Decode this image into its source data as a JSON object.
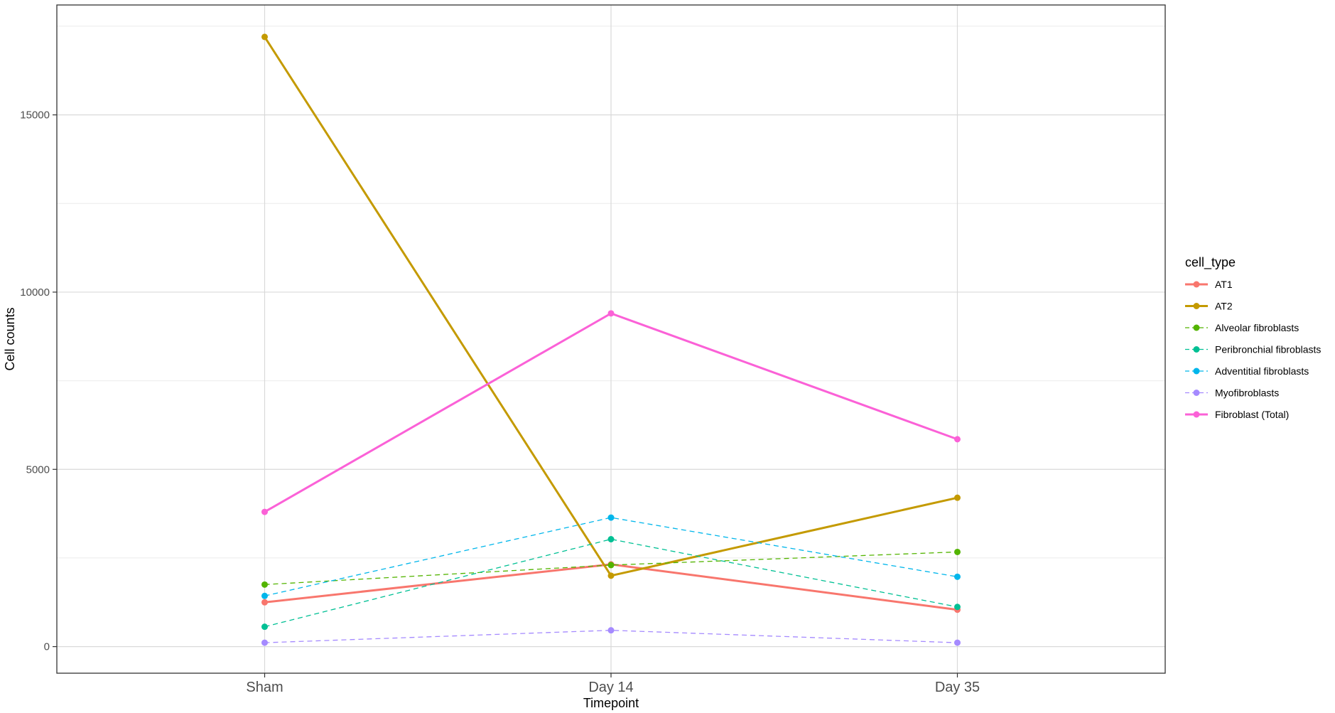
{
  "chart_data": {
    "type": "line",
    "title": "",
    "xlabel": "Timepoint",
    "ylabel": "Cell counts",
    "categories": [
      "Sham",
      "Day 14",
      "Day 35"
    ],
    "ylim": [
      -750,
      18100
    ],
    "yticks": [
      0,
      5000,
      10000,
      15000
    ],
    "grid": true,
    "legend": {
      "title": "cell_type",
      "placement": "right"
    },
    "series": [
      {
        "name": "AT1",
        "values": [
          1250,
          2320,
          1040
        ],
        "color": "#F8766D",
        "linestyle": "solid"
      },
      {
        "name": "AT2",
        "values": [
          17200,
          2000,
          4200
        ],
        "color": "#C49A00",
        "linestyle": "solid"
      },
      {
        "name": "Alveolar fibroblasts",
        "values": [
          1750,
          2300,
          2670
        ],
        "color": "#53B400",
        "linestyle": "dashed"
      },
      {
        "name": "Peribronchial fibroblasts",
        "values": [
          560,
          3030,
          1120
        ],
        "color": "#00C094",
        "linestyle": "dashed"
      },
      {
        "name": "Adventitial fibroblasts",
        "values": [
          1430,
          3640,
          1970
        ],
        "color": "#00B6EB",
        "linestyle": "dashed"
      },
      {
        "name": "Myofibroblasts",
        "values": [
          110,
          460,
          110
        ],
        "color": "#A58AFF",
        "linestyle": "dashed"
      },
      {
        "name": "Fibroblast (Total)",
        "values": [
          3800,
          9400,
          5850
        ],
        "color": "#FB61D7",
        "linestyle": "solid"
      }
    ]
  }
}
